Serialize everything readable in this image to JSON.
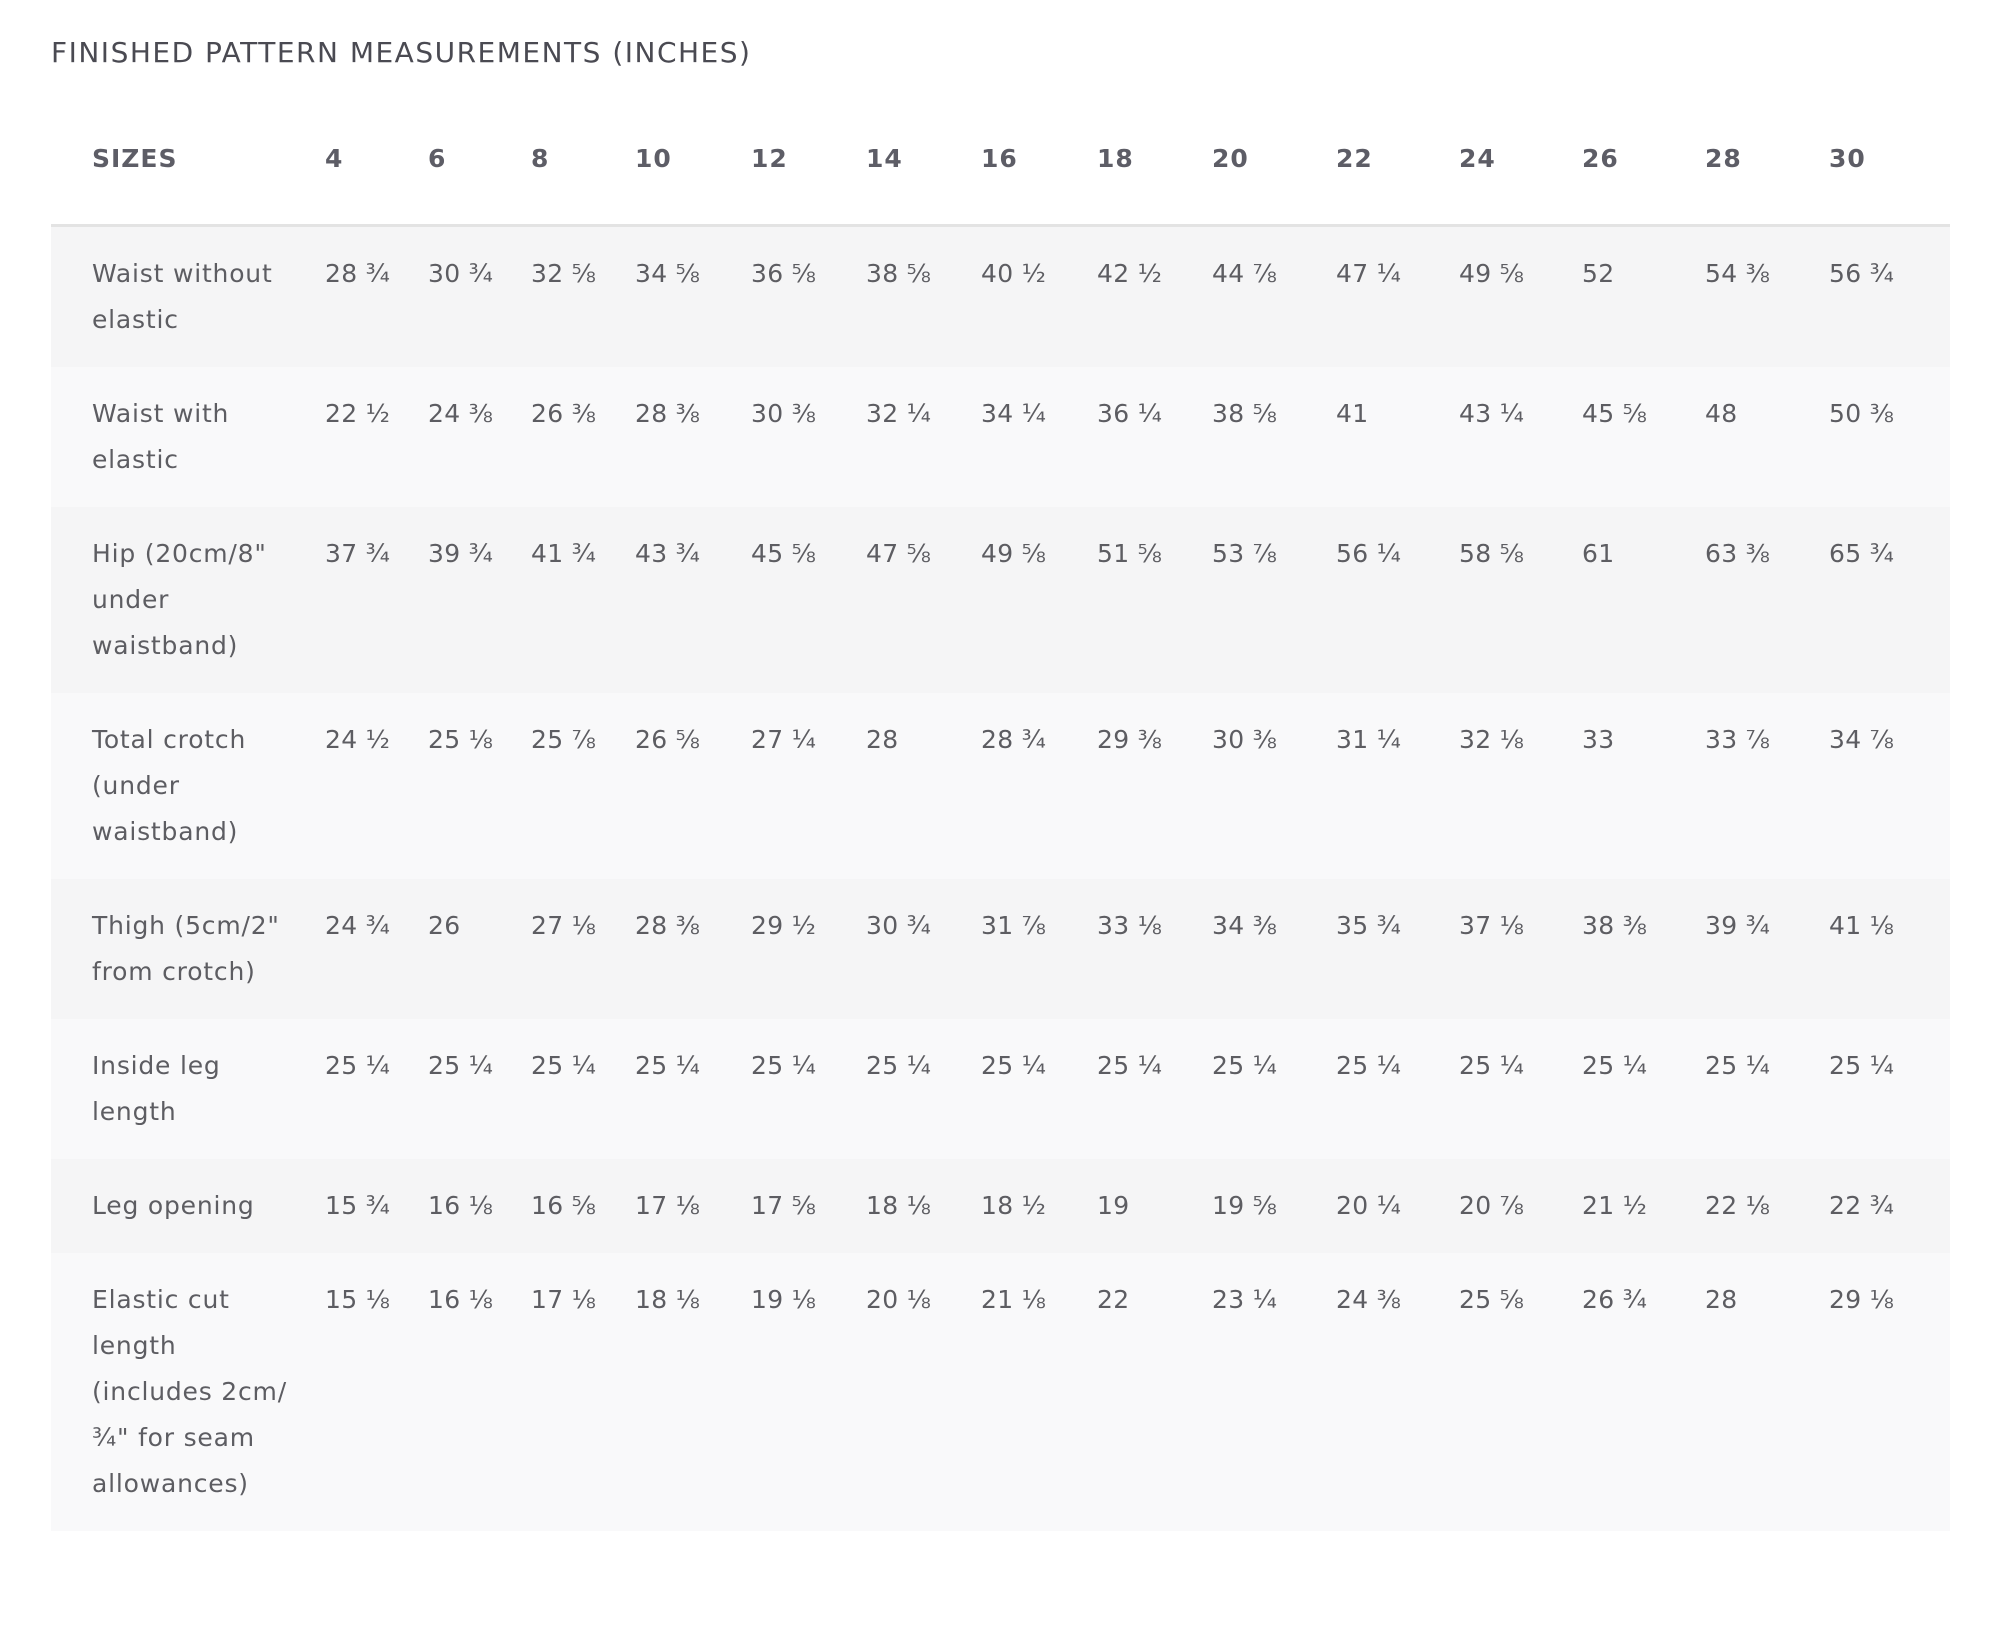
{
  "title": "FINISHED PATTERN MEASUREMENTS (INCHES)",
  "table": {
    "header_label": "SIZES",
    "sizes": [
      "4",
      "6",
      "8",
      "10",
      "12",
      "14",
      "16",
      "18",
      "20",
      "22",
      "24",
      "26",
      "28",
      "30"
    ],
    "rows": [
      {
        "label": "Waist without elastic",
        "values": [
          "28 ¾",
          "30 ¾",
          "32 ⅝",
          "34 ⅝",
          "36 ⅝",
          "38 ⅝",
          "40 ½",
          "42 ½",
          "44 ⅞",
          "47 ¼",
          "49 ⅝",
          "52",
          "54 ⅜",
          "56 ¾"
        ]
      },
      {
        "label": "Waist with elastic",
        "values": [
          "22 ½",
          "24 ⅜",
          "26 ⅜",
          "28 ⅜",
          "30 ⅜",
          "32 ¼",
          "34 ¼",
          "36 ¼",
          "38 ⅝",
          "41",
          "43 ¼",
          "45 ⅝",
          "48",
          "50 ⅜"
        ]
      },
      {
        "label": "Hip (20cm/8\" under waistband)",
        "values": [
          "37 ¾",
          "39 ¾",
          "41 ¾",
          "43 ¾",
          "45 ⅝",
          "47 ⅝",
          "49 ⅝",
          "51 ⅝",
          "53 ⅞",
          "56 ¼",
          "58 ⅝",
          "61",
          "63 ⅜",
          "65 ¾"
        ]
      },
      {
        "label": "Total crotch (under waistband)",
        "values": [
          "24 ½",
          "25 ⅛",
          "25 ⅞",
          "26 ⅝",
          "27 ¼",
          "28",
          "28 ¾",
          "29 ⅜",
          "30 ⅜",
          "31 ¼",
          "32 ⅛",
          "33",
          "33 ⅞",
          "34 ⅞"
        ]
      },
      {
        "label": "Thigh (5cm/2\" from crotch)",
        "values": [
          "24 ¾",
          "26",
          "27 ⅛",
          "28 ⅜",
          "29 ½",
          "30 ¾",
          "31 ⅞",
          "33 ⅛",
          "34 ⅜",
          "35 ¾",
          "37 ⅛",
          "38 ⅜",
          "39 ¾",
          "41 ⅛"
        ]
      },
      {
        "label": "Inside leg length",
        "values": [
          "25 ¼",
          "25 ¼",
          "25 ¼",
          "25 ¼",
          "25 ¼",
          "25 ¼",
          "25 ¼",
          "25 ¼",
          "25 ¼",
          "25 ¼",
          "25 ¼",
          "25 ¼",
          "25 ¼",
          "25 ¼"
        ]
      },
      {
        "label": "Leg opening",
        "values": [
          "15 ¾",
          "16 ⅛",
          "16 ⅝",
          "17 ⅛",
          "17 ⅝",
          "18 ⅛",
          "18 ½",
          "19",
          "19 ⅝",
          "20 ¼",
          "20 ⅞",
          "21 ½",
          "22 ⅛",
          "22 ¾"
        ]
      },
      {
        "label": "Elastic cut length (includes 2cm/¾\" for seam allowances)",
        "values": [
          "15 ⅛",
          "16 ⅛",
          "17 ⅛",
          "18 ⅛",
          "19 ⅛",
          "20 ⅛",
          "21 ⅛",
          "22",
          "23 ¼",
          "24 ⅜",
          "25 ⅝",
          "26 ¾",
          "28",
          "29 ⅛"
        ]
      }
    ]
  }
}
